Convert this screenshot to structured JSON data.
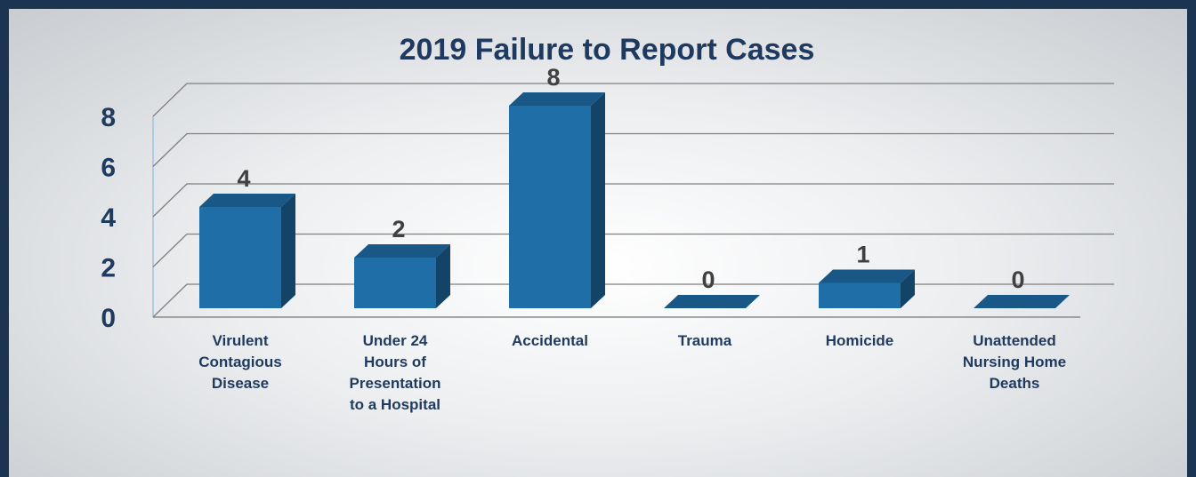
{
  "chart_data": {
    "type": "bar",
    "title": "2019 Failure to Report Cases",
    "categories": [
      "Virulent Contagious Disease",
      "Under 24 Hours of Presentation to a Hospital",
      "Accidental",
      "Trauma",
      "Homicide",
      "Unattended Nursing Home Deaths"
    ],
    "values": [
      4,
      2,
      8,
      0,
      1,
      0
    ],
    "color": "#1f6ea8",
    "ylim": [
      0,
      8
    ],
    "yticks": [
      0,
      2,
      4,
      6,
      8
    ],
    "grid": true
  }
}
